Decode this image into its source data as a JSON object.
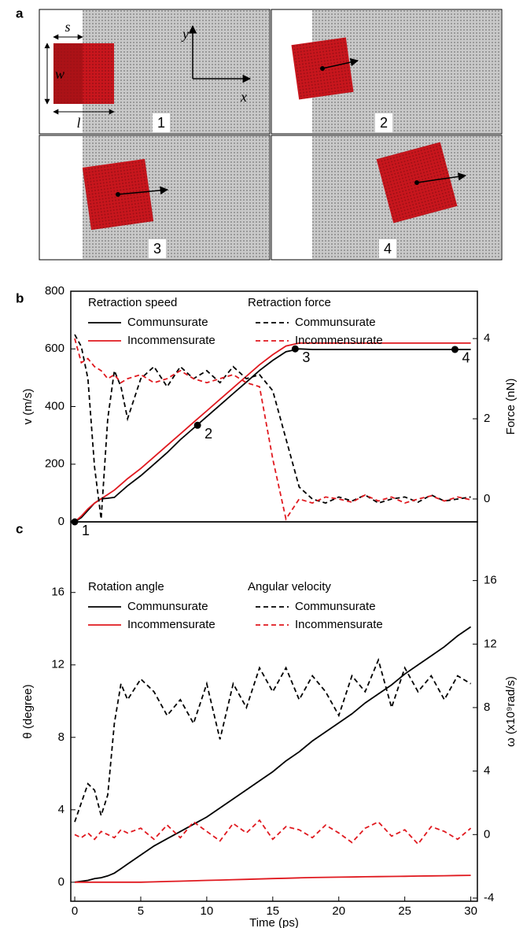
{
  "panel_a": {
    "label": "a",
    "dimension_labels": [
      "s",
      "w",
      "l"
    ],
    "axis_labels": [
      "y",
      "x"
    ],
    "frames": [
      "1",
      "2",
      "3",
      "4"
    ]
  },
  "chart_data": [
    {
      "type": "line",
      "panel_label": "b",
      "legend_titles": [
        "Retraction speed",
        "Retraction force"
      ],
      "y_label": "v (m/s)",
      "y2_label": "Force (nN)",
      "x": [
        0,
        0.5,
        1,
        1.5,
        2,
        2.5,
        3,
        3.5,
        4,
        5,
        6,
        7,
        8,
        9,
        10,
        11,
        12,
        13,
        14,
        15,
        16,
        17,
        18,
        19,
        20,
        21,
        22,
        23,
        24,
        25,
        26,
        27,
        28,
        29,
        30
      ],
      "xlim": [
        -0.3,
        30.5
      ],
      "ylim": [
        0,
        800
      ],
      "yticks": [
        0,
        200,
        400,
        600,
        800
      ],
      "y2lim": [
        -0.57,
        5.18
      ],
      "y2ticks": [
        0,
        2,
        4
      ],
      "series": [
        {
          "name": "Communsurate",
          "color": "#000000",
          "style": "solid",
          "values": [
            0,
            15,
            40,
            65,
            80,
            82,
            85,
            105,
            125,
            160,
            200,
            240,
            285,
            325,
            365,
            405,
            445,
            485,
            525,
            560,
            590,
            600,
            598,
            598,
            598,
            598,
            598,
            598,
            598,
            598,
            598,
            598,
            598,
            598,
            598
          ]
        },
        {
          "name": "Incommensurate",
          "color": "#e0191f",
          "style": "solid",
          "values": [
            0,
            20,
            45,
            65,
            80,
            95,
            110,
            130,
            150,
            185,
            225,
            265,
            305,
            345,
            385,
            425,
            465,
            505,
            545,
            580,
            610,
            620,
            620,
            620,
            620,
            620,
            620,
            620,
            620,
            620,
            620,
            620,
            620,
            620,
            620
          ]
        },
        {
          "name": "Communsurate",
          "color": "#000000",
          "style": "dashed",
          "axis": "y2",
          "values": [
            4.1,
            3.8,
            3.0,
            0.8,
            -0.5,
            2.0,
            3.2,
            2.8,
            2.0,
            3.0,
            3.3,
            2.8,
            3.3,
            3.0,
            3.2,
            2.9,
            3.3,
            3.0,
            3.1,
            2.7,
            1.5,
            0.3,
            0.0,
            -0.1,
            0.05,
            -0.05,
            0.1,
            -0.1,
            0.0,
            0.05,
            -0.08,
            0.1,
            -0.05,
            0.0,
            0.05
          ]
        },
        {
          "name": "Incommensurate",
          "color": "#e0191f",
          "style": "dashed",
          "axis": "y2",
          "values": [
            4.0,
            3.4,
            3.5,
            3.3,
            3.2,
            3.0,
            3.1,
            2.9,
            3.0,
            3.1,
            2.9,
            3.0,
            3.2,
            3.0,
            2.9,
            3.0,
            3.1,
            2.9,
            2.8,
            1.0,
            -0.5,
            0.0,
            -0.1,
            0.05,
            0.0,
            -0.08,
            0.1,
            -0.05,
            0.05,
            -0.1,
            0.0,
            0.08,
            -0.05,
            0.05,
            -0.02
          ]
        }
      ],
      "annotations": [
        {
          "x": 0,
          "y": 0,
          "label": "1"
        },
        {
          "x": 9.3,
          "y": 335,
          "label": "2"
        },
        {
          "x": 16.7,
          "y": 600,
          "label": "3"
        },
        {
          "x": 28.8,
          "y": 598,
          "label": "4"
        }
      ]
    },
    {
      "type": "line",
      "panel_label": "c",
      "legend_titles": [
        "Rotation angle",
        "Angular velocity"
      ],
      "y_label": "θ (degree)",
      "y2_label": "ω (x10⁹rad/s)",
      "x_label": "Time (ps)",
      "x": [
        0,
        0.5,
        1,
        1.5,
        2,
        2.5,
        3,
        3.5,
        4,
        5,
        6,
        7,
        8,
        9,
        10,
        11,
        12,
        13,
        14,
        15,
        16,
        17,
        18,
        19,
        20,
        21,
        22,
        23,
        24,
        25,
        26,
        27,
        28,
        29,
        30
      ],
      "xlim": [
        -0.3,
        30.5
      ],
      "xticks": [
        0,
        5,
        10,
        15,
        20,
        25,
        30
      ],
      "ylim": [
        -1.05,
        19.9
      ],
      "yticks": [
        0,
        4,
        8,
        12,
        16
      ],
      "y2lim": [
        -4.2,
        19.7
      ],
      "y2ticks": [
        -4,
        0,
        4,
        8,
        12,
        16
      ],
      "series": [
        {
          "name": "Communsurate",
          "color": "#000000",
          "style": "solid",
          "values": [
            0,
            0.05,
            0.1,
            0.2,
            0.25,
            0.35,
            0.5,
            0.75,
            1.0,
            1.5,
            2.0,
            2.4,
            2.8,
            3.2,
            3.6,
            4.1,
            4.6,
            5.1,
            5.6,
            6.1,
            6.7,
            7.2,
            7.8,
            8.3,
            8.8,
            9.3,
            9.9,
            10.4,
            10.9,
            11.5,
            12.0,
            12.5,
            13.0,
            13.6,
            14.1
          ]
        },
        {
          "name": "Incommensurate",
          "color": "#e0191f",
          "style": "solid",
          "values": [
            0,
            0,
            0,
            0,
            0,
            0,
            0,
            0,
            0,
            0,
            0.02,
            0.04,
            0.06,
            0.08,
            0.1,
            0.12,
            0.14,
            0.16,
            0.18,
            0.2,
            0.22,
            0.24,
            0.26,
            0.27,
            0.28,
            0.29,
            0.3,
            0.31,
            0.32,
            0.33,
            0.34,
            0.35,
            0.36,
            0.37,
            0.38
          ]
        },
        {
          "name": "Communsurate",
          "color": "#000000",
          "style": "dashed",
          "axis": "y2",
          "values": [
            0.8,
            2,
            3.2,
            2.8,
            1.2,
            2.5,
            7,
            9.5,
            8.5,
            9.8,
            9.0,
            7.5,
            8.5,
            7,
            9.5,
            6,
            9.5,
            8,
            10.5,
            9,
            10.5,
            8.5,
            10,
            9,
            7.5,
            10,
            9,
            11,
            8,
            10.5,
            9,
            10,
            8.5,
            10,
            9.5
          ]
        },
        {
          "name": "Incommensurate",
          "color": "#e0191f",
          "style": "dashed",
          "axis": "y2",
          "values": [
            0,
            -0.2,
            0.1,
            -0.3,
            0.2,
            0,
            -0.2,
            0.3,
            0.1,
            0.4,
            -0.3,
            0.6,
            -0.2,
            0.8,
            0.2,
            -0.4,
            0.7,
            0.1,
            0.9,
            -0.3,
            0.5,
            0.3,
            -0.2,
            0.6,
            0.1,
            -0.5,
            0.4,
            0.8,
            -0.1,
            0.3,
            -0.6,
            0.5,
            0.2,
            -0.3,
            0.4
          ]
        }
      ]
    }
  ]
}
